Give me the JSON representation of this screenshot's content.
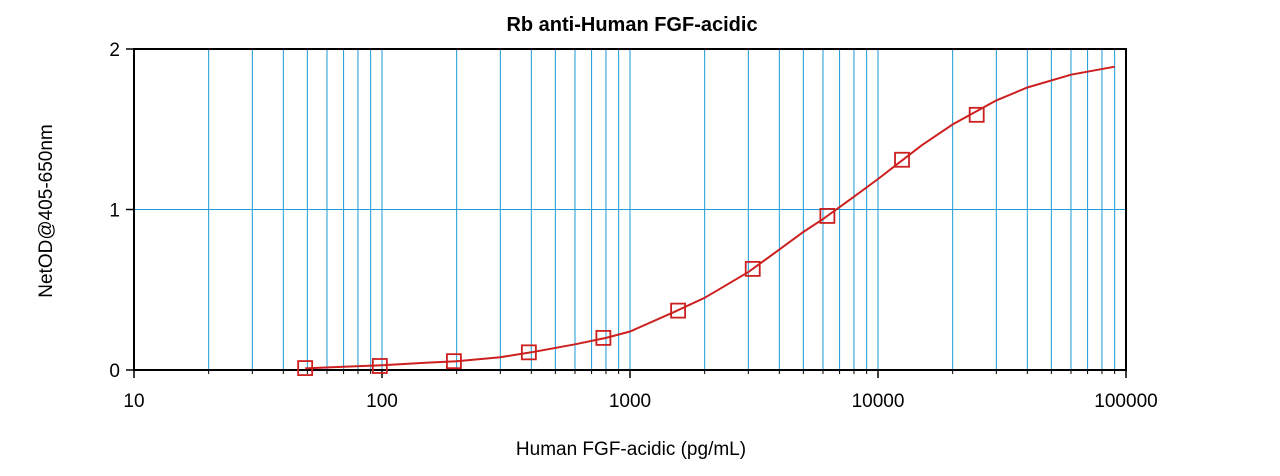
{
  "chart_data": {
    "type": "scatter",
    "title": "Rb anti-Human FGF-acidic",
    "xlabel": "Human FGF-acidic (pg/mL)",
    "ylabel": "NetOD@405-650nm",
    "xscale": "log",
    "xlim": [
      10,
      100000
    ],
    "ylim": [
      0,
      2
    ],
    "x_ticks": [
      "10",
      "100",
      "1000",
      "10000",
      "100000"
    ],
    "y_ticks": [
      "0",
      "1",
      "2"
    ],
    "grid": true,
    "legend": "none",
    "series": [
      {
        "marker": "open-square",
        "x": [
          49,
          98,
          195,
          391,
          781,
          1563,
          3125,
          6250,
          12500,
          25000
        ],
        "y": [
          0.012,
          0.025,
          0.055,
          0.11,
          0.2,
          0.37,
          0.63,
          0.96,
          1.31,
          1.59
        ]
      }
    ],
    "fit_curve": {
      "type": "4-parameter logistic",
      "x": [
        49,
        70,
        100,
        150,
        200,
        300,
        400,
        600,
        800,
        1000,
        1500,
        2000,
        3000,
        4000,
        5000,
        6000,
        8000,
        10000,
        15000,
        20000,
        30000,
        40000,
        60000,
        90000
      ],
      "y": [
        0.01,
        0.02,
        0.03,
        0.045,
        0.055,
        0.08,
        0.11,
        0.16,
        0.2,
        0.24,
        0.36,
        0.45,
        0.61,
        0.75,
        0.86,
        0.94,
        1.08,
        1.19,
        1.4,
        1.53,
        1.68,
        1.76,
        1.84,
        1.89
      ]
    },
    "colors": {
      "grid": "#1a9ad6",
      "series": "#cc1f1f",
      "axes": "#000000"
    }
  }
}
